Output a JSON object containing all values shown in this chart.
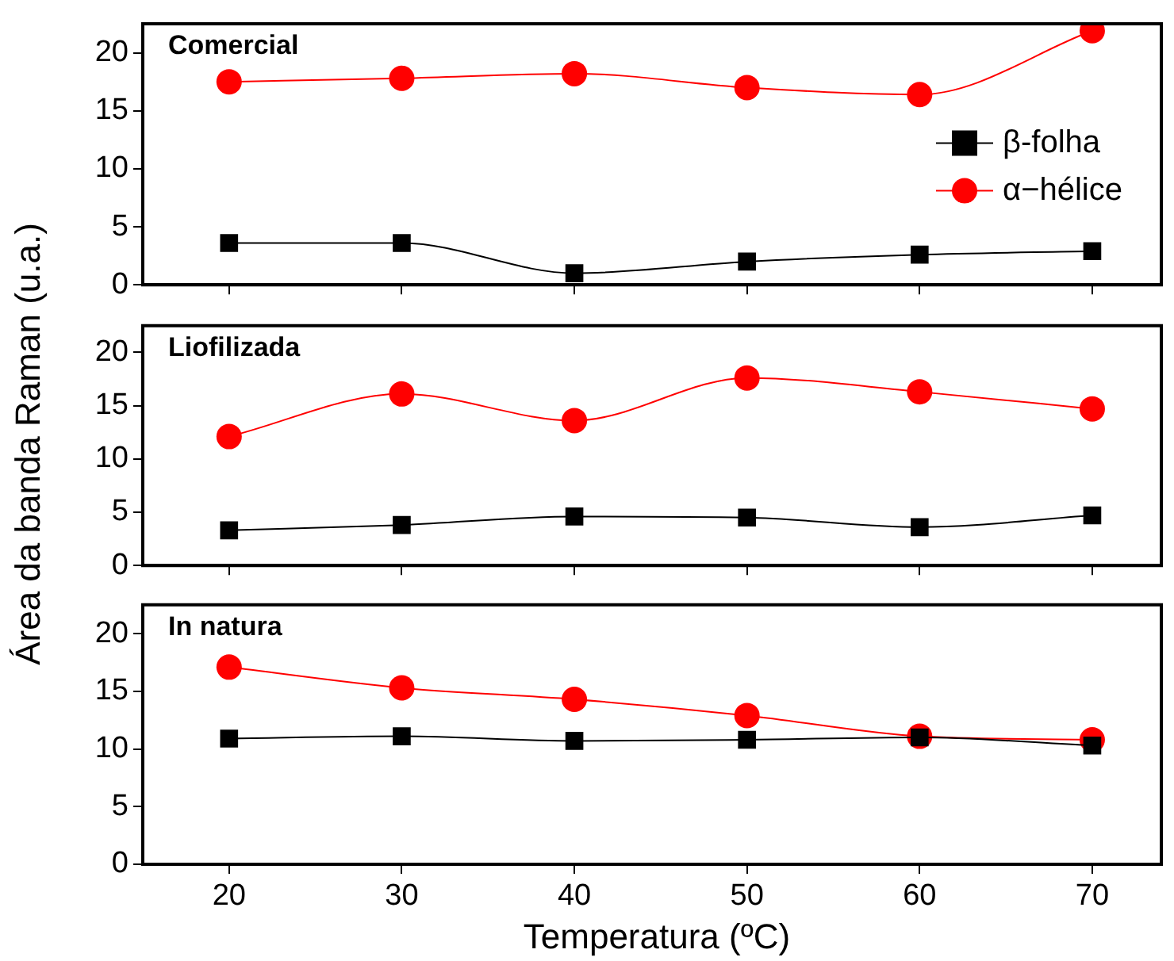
{
  "chart_data": [
    {
      "type": "line",
      "title": "Comercial",
      "x": [
        20,
        30,
        40,
        50,
        60,
        70
      ],
      "xlim": [
        15,
        74
      ],
      "xticks": [
        20,
        30,
        40,
        50,
        60,
        70
      ],
      "ylim": [
        0,
        22.5
      ],
      "yticks": [
        0,
        5,
        10,
        15,
        20
      ],
      "tick_labels": "y",
      "grid": false,
      "legend": "right",
      "series": [
        {
          "name": "β-folha",
          "color": "#000000",
          "marker": "square",
          "values": [
            3.6,
            3.6,
            1.0,
            2.0,
            2.6,
            2.9
          ]
        },
        {
          "name": "α−hélice",
          "color": "#ff0000",
          "marker": "circle",
          "values": [
            17.5,
            17.8,
            18.2,
            17.0,
            16.4,
            21.9
          ]
        }
      ]
    },
    {
      "type": "line",
      "title": "Liofilizada",
      "ylabel": "Área da banda Raman (u.a.)",
      "x": [
        20,
        30,
        40,
        50,
        60,
        70
      ],
      "xlim": [
        15,
        74
      ],
      "xticks": [
        20,
        30,
        40,
        50,
        60,
        70
      ],
      "ylim": [
        0,
        22.5
      ],
      "yticks": [
        0,
        5,
        10,
        15,
        20
      ],
      "tick_labels": "y",
      "grid": false,
      "series": [
        {
          "color": "#000000",
          "marker": "square",
          "values": [
            3.3,
            3.8,
            4.6,
            4.5,
            3.6,
            4.7
          ]
        },
        {
          "color": "#ff0000",
          "marker": "circle",
          "values": [
            12.1,
            16.1,
            13.6,
            17.6,
            16.3,
            14.7
          ]
        }
      ]
    },
    {
      "type": "line",
      "title": "In natura",
      "xlabel": "Temperatura (ºC)",
      "x": [
        20,
        30,
        40,
        50,
        60,
        70
      ],
      "xlim": [
        15,
        74
      ],
      "xticks": [
        20,
        30,
        40,
        50,
        60,
        70
      ],
      "ylim": [
        0,
        22.5
      ],
      "yticks": [
        0,
        5,
        10,
        15,
        20
      ],
      "grid": false,
      "series": [
        {
          "color": "#000000",
          "marker": "square",
          "values": [
            10.9,
            11.1,
            10.7,
            10.8,
            11.0,
            10.3
          ]
        },
        {
          "color": "#ff0000",
          "marker": "circle",
          "values": [
            17.1,
            15.3,
            14.3,
            12.9,
            11.1,
            10.8
          ]
        }
      ]
    }
  ]
}
